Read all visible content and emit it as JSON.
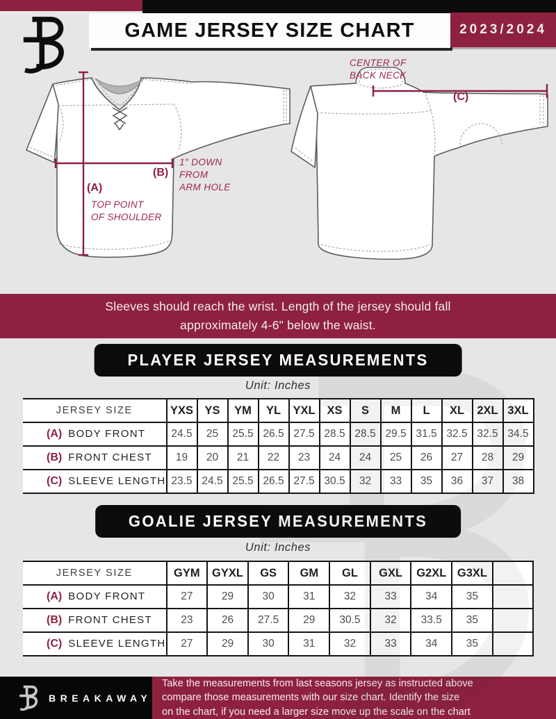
{
  "colors": {
    "maroon": "#8e2140",
    "black": "#0c0c0c",
    "page_bg": "#e7e6e6"
  },
  "header": {
    "title": "GAME JERSEY SIZE CHART",
    "season": "2023/2024"
  },
  "diagrams": {
    "front": {
      "a_key": "(A)",
      "a_caption_lines": [
        "TOP POINT",
        "OF SHOULDER"
      ],
      "b_key": "(B)",
      "b_caption_lines": [
        "1\" DOWN",
        "FROM",
        "ARM HOLE"
      ]
    },
    "back": {
      "c_key": "(C)",
      "c_caption_lines": [
        "CENTER OF",
        "BACK NECK"
      ]
    }
  },
  "notice_lines": [
    "Sleeves should reach the wrist. Length of the jersey should fall",
    "approximately 4-6\" below the waist."
  ],
  "player_table": {
    "title": "PLAYER JERSEY MEASUREMENTS",
    "unit": "Unit: Inches",
    "header": [
      "JERSEY SIZE",
      "YXS",
      "YS",
      "YM",
      "YL",
      "YXL",
      "XS",
      "S",
      "M",
      "L",
      "XL",
      "2XL",
      "3XL"
    ],
    "rows": [
      {
        "key": "(A)",
        "label": "BODY FRONT",
        "values": [
          "24.5",
          "25",
          "25.5",
          "26.5",
          "27.5",
          "28.5",
          "28.5",
          "29.5",
          "31.5",
          "32.5",
          "32.5",
          "34.5"
        ]
      },
      {
        "key": "(B)",
        "label": "FRONT CHEST",
        "values": [
          "19",
          "20",
          "21",
          "22",
          "23",
          "24",
          "24",
          "25",
          "26",
          "27",
          "28",
          "29"
        ]
      },
      {
        "key": "(C)",
        "label": "SLEEVE LENGTH",
        "values": [
          "23.5",
          "24.5",
          "25.5",
          "26.5",
          "27.5",
          "30.5",
          "32",
          "33",
          "35",
          "36",
          "37",
          "38"
        ]
      }
    ]
  },
  "goalie_table": {
    "title": "GOALIE JERSEY MEASUREMENTS",
    "unit": "Unit: Inches",
    "header": [
      "JERSEY SIZE",
      "GYM",
      "GYXL",
      "GS",
      "GM",
      "GL",
      "GXL",
      "G2XL",
      "G3XL",
      ""
    ],
    "rows": [
      {
        "key": "(A)",
        "label": "BODY FRONT",
        "values": [
          "27",
          "29",
          "30",
          "31",
          "32",
          "33",
          "34",
          "35",
          ""
        ]
      },
      {
        "key": "(B)",
        "label": "FRONT CHEST",
        "values": [
          "23",
          "26",
          "27.5",
          "29",
          "30.5",
          "32",
          "33.5",
          "35",
          ""
        ]
      },
      {
        "key": "(C)",
        "label": "SLEEVE LENGTH",
        "values": [
          "27",
          "29",
          "30",
          "31",
          "32",
          "33",
          "34",
          "35",
          ""
        ]
      }
    ]
  },
  "footer": {
    "brand": "BREAKAWAY",
    "note_lines": [
      "Take the measurements from last seasons jersey as instructed above",
      "compare those measurements  with our size chart. Identify the size",
      "on the chart, if you need a larger size move up the scale on the chart"
    ]
  }
}
